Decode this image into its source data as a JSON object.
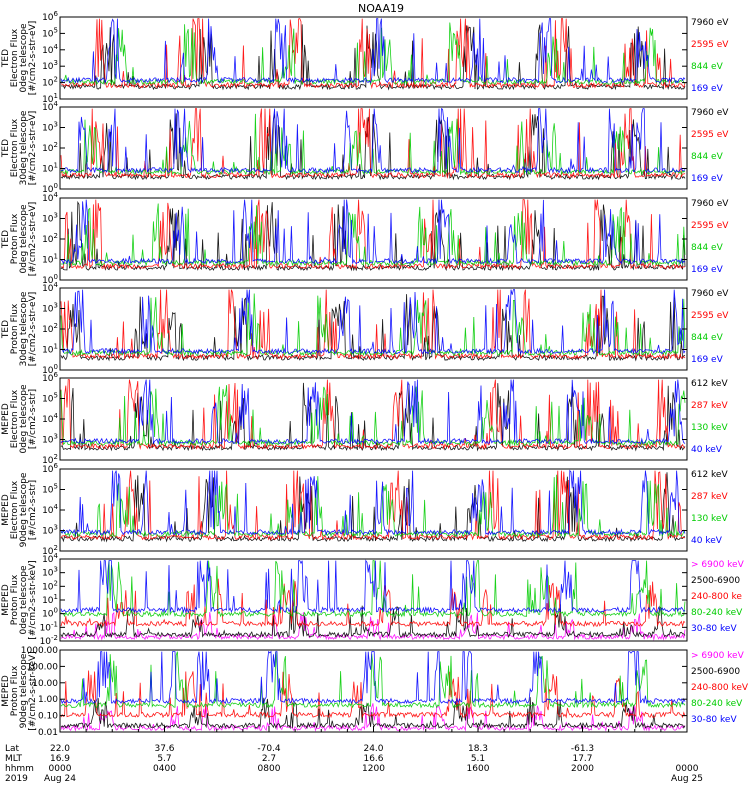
{
  "title": "NOAA19",
  "chart_data": [
    {
      "type": "line",
      "panel": "ted-electron-0deg",
      "ylabel": [
        "TED",
        "Electron Flux",
        "0deg telescope",
        "[#/cm2-s-str-eV]"
      ],
      "y_ticks": [
        "10^1",
        "10^2",
        "10^3",
        "10^4",
        "10^5",
        "10^6"
      ],
      "ylim": [
        10,
        1000000
      ],
      "scale": "log",
      "series": [
        {
          "name": "7960 eV",
          "color": "#000000"
        },
        {
          "name": "2595 eV",
          "color": "#ff0000"
        },
        {
          "name": "844 eV",
          "color": "#00cc00"
        },
        {
          "name": "169 eV",
          "color": "#0000ff"
        }
      ]
    },
    {
      "type": "line",
      "panel": "ted-electron-30deg",
      "ylabel": [
        "TED",
        "Electron Flux",
        "30deg telescope",
        "[#/cm2-s-str-eV]"
      ],
      "y_ticks": [
        "10^0",
        "10^1",
        "10^2",
        "10^3",
        "10^4"
      ],
      "ylim": [
        1,
        10000
      ],
      "scale": "log",
      "series": [
        {
          "name": "7960 eV",
          "color": "#000000"
        },
        {
          "name": "2595 eV",
          "color": "#ff0000"
        },
        {
          "name": "844 eV",
          "color": "#00cc00"
        },
        {
          "name": "169 eV",
          "color": "#0000ff"
        }
      ]
    },
    {
      "type": "line",
      "panel": "ted-proton-0deg",
      "ylabel": [
        "TED",
        "Proton Flux",
        "0deg telescope",
        "[#/cm2-s-str-eV]"
      ],
      "y_ticks": [
        "10^0",
        "10^1",
        "10^2",
        "10^3",
        "10^4"
      ],
      "ylim": [
        1,
        10000
      ],
      "scale": "log",
      "series": [
        {
          "name": "7960 eV",
          "color": "#000000"
        },
        {
          "name": "2595 eV",
          "color": "#ff0000"
        },
        {
          "name": "844 eV",
          "color": "#00cc00"
        },
        {
          "name": "169 eV",
          "color": "#0000ff"
        }
      ]
    },
    {
      "type": "line",
      "panel": "ted-proton-30deg",
      "ylabel": [
        "TED",
        "Proton Flux",
        "30deg telescope",
        "[#/cm2-s-str-eV]"
      ],
      "y_ticks": [
        "10^0",
        "10^1",
        "10^2",
        "10^3",
        "10^4"
      ],
      "ylim": [
        1,
        10000
      ],
      "scale": "log",
      "series": [
        {
          "name": "7960 eV",
          "color": "#000000"
        },
        {
          "name": "2595 eV",
          "color": "#ff0000"
        },
        {
          "name": "844 eV",
          "color": "#00cc00"
        },
        {
          "name": "169 eV",
          "color": "#0000ff"
        }
      ]
    },
    {
      "type": "line",
      "panel": "meped-electron-0deg",
      "ylabel": [
        "MEPED",
        "Electron Flux",
        "0deg telescope",
        "[#/cm2-s-str]"
      ],
      "y_ticks": [
        "10^2",
        "10^3",
        "10^4",
        "10^5",
        "10^6"
      ],
      "ylim": [
        100,
        1000000
      ],
      "scale": "log",
      "series": [
        {
          "name": "612 keV",
          "color": "#000000"
        },
        {
          "name": "287 keV",
          "color": "#ff0000"
        },
        {
          "name": "130 keV",
          "color": "#00cc00"
        },
        {
          "name": "40 keV",
          "color": "#0000ff"
        }
      ]
    },
    {
      "type": "line",
      "panel": "meped-electron-90deg",
      "ylabel": [
        "MEPED",
        "Electron Flux",
        "90deg telescope",
        "[#/cm2-s-str]"
      ],
      "y_ticks": [
        "10^2",
        "10^3",
        "10^4",
        "10^5",
        "10^6"
      ],
      "ylim": [
        100,
        1000000
      ],
      "scale": "log",
      "series": [
        {
          "name": "612 keV",
          "color": "#000000"
        },
        {
          "name": "287 keV",
          "color": "#ff0000"
        },
        {
          "name": "130 keV",
          "color": "#00cc00"
        },
        {
          "name": "40 keV",
          "color": "#0000ff"
        }
      ]
    },
    {
      "type": "line",
      "panel": "meped-proton-0deg",
      "ylabel": [
        "MEPED",
        "Proton Flux",
        "0deg telescope",
        "[#/cm2-s-str-keV]"
      ],
      "y_ticks": [
        "10^-2",
        "10^-1",
        "10^0",
        "10^1",
        "10^2",
        "10^3",
        "10^4"
      ],
      "ylim": [
        0.01,
        10000
      ],
      "scale": "log",
      "series": [
        {
          "name": "> 6900 keV",
          "color": "#ff00ff"
        },
        {
          "name": "2500-6900",
          "color": "#000000"
        },
        {
          "name": "240-800 ke",
          "color": "#ff0000"
        },
        {
          "name": "80-240 keV",
          "color": "#00cc00"
        },
        {
          "name": "30-80 keV",
          "color": "#0000ff"
        }
      ]
    },
    {
      "type": "line",
      "panel": "meped-proton-90deg",
      "ylabel": [
        "MEPED",
        "Proton Flux",
        "90deg telescope",
        "[#/cm2-s-str-keV]"
      ],
      "y_ticks": [
        "0.01",
        "0.10",
        "1.00",
        "10.00",
        "100.00",
        "1000.00"
      ],
      "ylim": [
        0.01,
        1000
      ],
      "scale": "log",
      "series": [
        {
          "name": "> 6900 keV",
          "color": "#ff00ff"
        },
        {
          "name": "2500-6900",
          "color": "#000000"
        },
        {
          "name": "240-800 keV",
          "color": "#ff0000"
        },
        {
          "name": "80-240 keV",
          "color": "#00cc00"
        },
        {
          "name": "30-80 keV",
          "color": "#0000ff"
        }
      ]
    }
  ],
  "x_axis": {
    "row_labels": [
      "Lat",
      "MLT",
      "hhmm",
      "2019"
    ],
    "hours": [
      0,
      4,
      8,
      12,
      16,
      20,
      24
    ],
    "lat": [
      "22.0",
      "37.6",
      "-70.4",
      "24.0",
      "18.3",
      "-61.3",
      ""
    ],
    "mlt": [
      "16.9",
      "5.7",
      "2.7",
      "16.6",
      "5.1",
      "17.7",
      ""
    ],
    "hhmm": [
      "0000",
      "0400",
      "0800",
      "1200",
      "1600",
      "2000",
      "0000"
    ],
    "dates": [
      "Aug 24",
      "",
      "",
      "",
      "",
      "",
      "Aug 25"
    ]
  }
}
